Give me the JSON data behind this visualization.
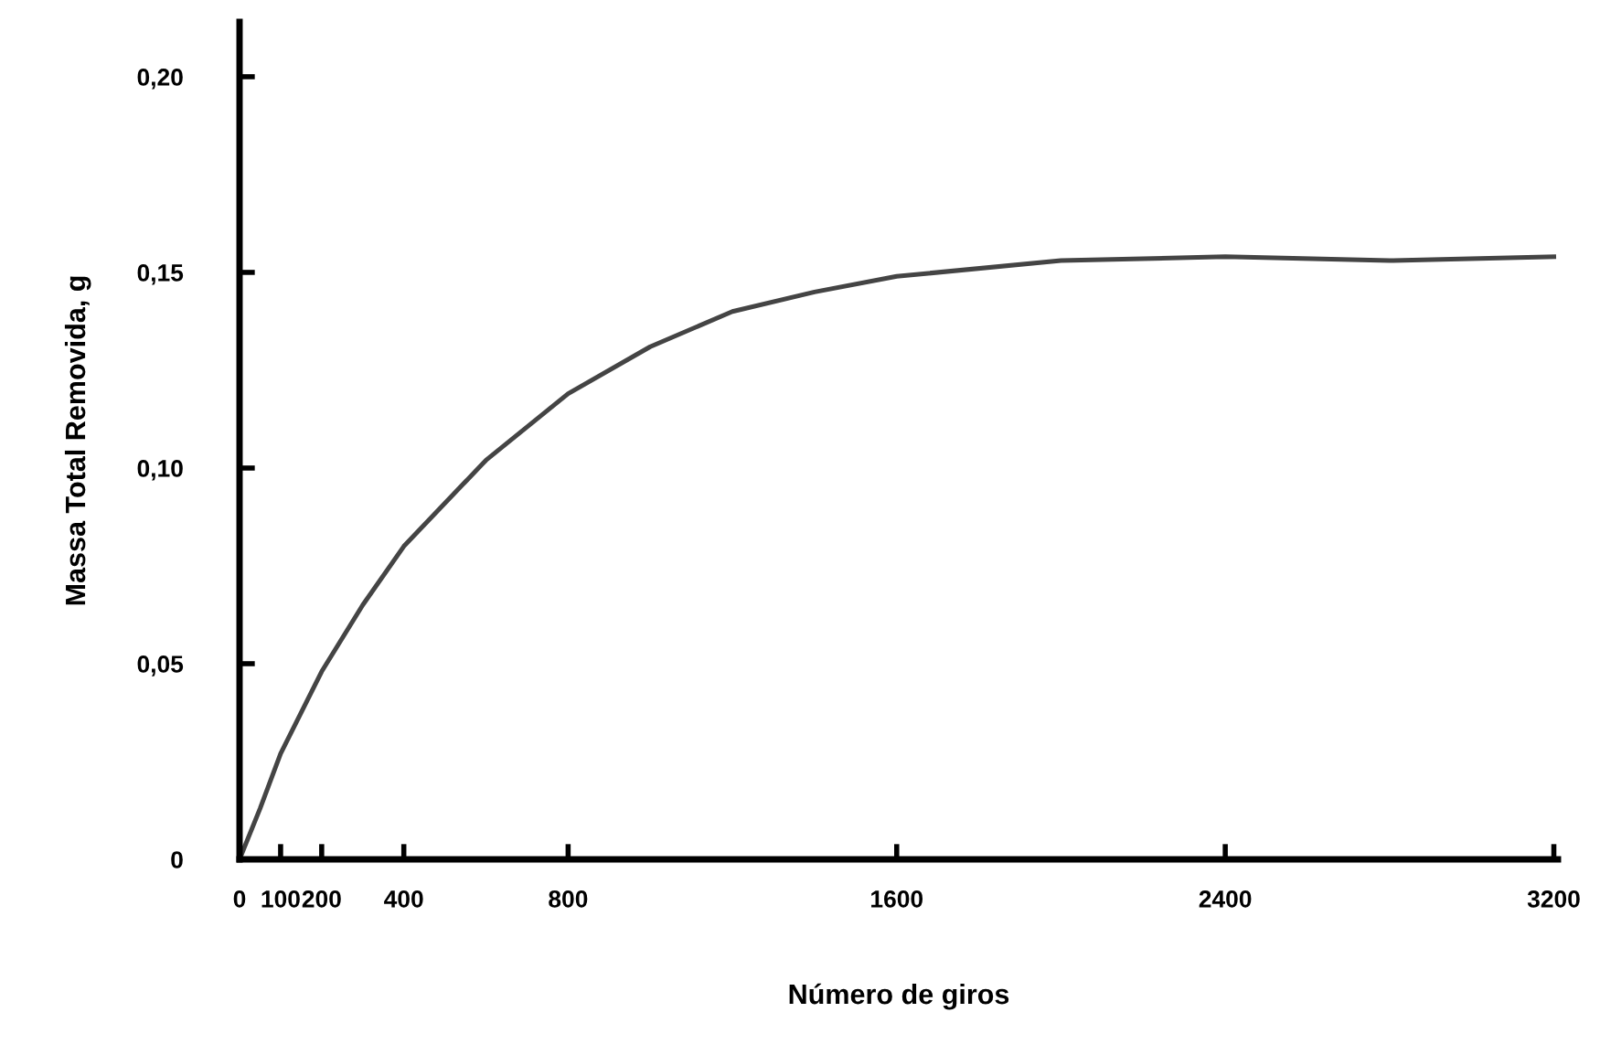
{
  "chart_data": {
    "type": "line",
    "xlabel": "Número de giros",
    "ylabel": "Massa Total Removida, g",
    "x": [
      0,
      50,
      100,
      200,
      300,
      400,
      600,
      800,
      1000,
      1200,
      1400,
      1600,
      2000,
      2400,
      2800,
      3200
    ],
    "series": [
      {
        "color": "#444444",
        "values": [
          0,
          0.013,
          0.027,
          0.048,
          0.065,
          0.08,
          0.102,
          0.119,
          0.131,
          0.14,
          0.145,
          0.149,
          0.153,
          0.154,
          0.153,
          0.154
        ]
      }
    ],
    "xlim": [
      0,
      3210
    ],
    "ylim": [
      0,
      0.214
    ],
    "xticks": [
      0,
      100,
      200,
      400,
      800,
      1600,
      2400,
      3200
    ],
    "yticks": [
      {
        "value": 0,
        "label": "0"
      },
      {
        "value": 0.05,
        "label": "0,05"
      },
      {
        "value": 0.1,
        "label": "0,10"
      },
      {
        "value": 0.15,
        "label": "0,15"
      },
      {
        "value": 0.2,
        "label": "0,20"
      }
    ],
    "grid": false,
    "legend": false,
    "marker": "none",
    "line_style": "solid"
  }
}
